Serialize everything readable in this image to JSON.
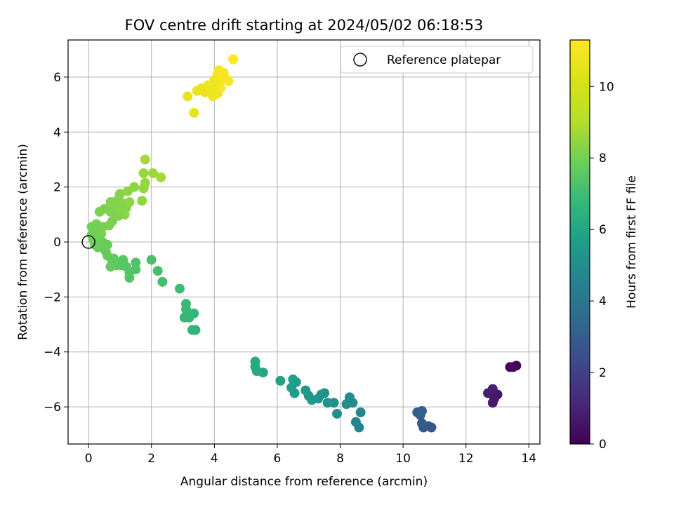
{
  "chart_data": {
    "type": "scatter",
    "title": "FOV centre drift starting at 2024/05/02 06:18:53",
    "xlabel": "Angular distance from reference (arcmin)",
    "ylabel": "Rotation from reference (arcmin)",
    "colorbar_label": "Hours from first FF file",
    "xlim": [
      -0.65,
      14.35
    ],
    "ylim": [
      -7.35,
      7.35
    ],
    "xticks": [
      0,
      2,
      4,
      6,
      8,
      10,
      12,
      14
    ],
    "yticks": [
      -6,
      -4,
      -2,
      0,
      2,
      4,
      6
    ],
    "colorbar_range": [
      0,
      11.3
    ],
    "colorbar_ticks": [
      0,
      2,
      4,
      6,
      8,
      10
    ],
    "colormap": "viridis",
    "grid": true,
    "legend": {
      "position": "upper-right",
      "entries": [
        "Reference platepar"
      ]
    },
    "reference_point": {
      "x": 0,
      "y": 0
    },
    "series": [
      {
        "values": [
          {
            "x": 13.6,
            "y": -4.5,
            "t": 0.1
          },
          {
            "x": 13.5,
            "y": -4.55,
            "t": 0.15
          },
          {
            "x": 13.4,
            "y": -4.55,
            "t": 0.2
          },
          {
            "x": 13.0,
            "y": -5.55,
            "t": 0.6
          },
          {
            "x": 12.9,
            "y": -5.7,
            "t": 0.7
          },
          {
            "x": 12.85,
            "y": -5.85,
            "t": 0.75
          },
          {
            "x": 12.7,
            "y": -5.5,
            "t": 0.85
          },
          {
            "x": 12.85,
            "y": -5.35,
            "t": 0.9
          },
          {
            "x": 10.9,
            "y": -6.75,
            "t": 2.7
          },
          {
            "x": 10.8,
            "y": -6.7,
            "t": 2.75
          },
          {
            "x": 10.65,
            "y": -6.75,
            "t": 2.8
          },
          {
            "x": 10.6,
            "y": -6.6,
            "t": 2.85
          },
          {
            "x": 10.55,
            "y": -6.3,
            "t": 2.9
          },
          {
            "x": 10.45,
            "y": -6.2,
            "t": 3.0
          },
          {
            "x": 10.6,
            "y": -6.15,
            "t": 3.05
          },
          {
            "x": 8.6,
            "y": -6.75,
            "t": 4.6
          },
          {
            "x": 8.5,
            "y": -6.55,
            "t": 4.7
          },
          {
            "x": 8.65,
            "y": -6.2,
            "t": 4.75
          },
          {
            "x": 8.4,
            "y": -5.85,
            "t": 4.85
          },
          {
            "x": 8.3,
            "y": -5.65,
            "t": 4.9
          },
          {
            "x": 8.2,
            "y": -5.9,
            "t": 5.0
          },
          {
            "x": 7.9,
            "y": -6.25,
            "t": 5.05
          },
          {
            "x": 7.8,
            "y": -5.85,
            "t": 5.1
          },
          {
            "x": 7.6,
            "y": -5.85,
            "t": 5.15
          },
          {
            "x": 7.5,
            "y": -5.5,
            "t": 5.2
          },
          {
            "x": 7.4,
            "y": -5.55,
            "t": 5.25
          },
          {
            "x": 7.3,
            "y": -5.7,
            "t": 5.3
          },
          {
            "x": 7.1,
            "y": -5.75,
            "t": 5.35
          },
          {
            "x": 7.0,
            "y": -5.6,
            "t": 5.4
          },
          {
            "x": 6.9,
            "y": -5.4,
            "t": 5.45
          },
          {
            "x": 6.6,
            "y": -5.1,
            "t": 5.55
          },
          {
            "x": 6.55,
            "y": -5.5,
            "t": 5.6
          },
          {
            "x": 6.45,
            "y": -5.3,
            "t": 5.65
          },
          {
            "x": 6.5,
            "y": -5.0,
            "t": 5.7
          },
          {
            "x": 6.1,
            "y": -5.05,
            "t": 5.8
          },
          {
            "x": 5.55,
            "y": -4.75,
            "t": 6.0
          },
          {
            "x": 5.35,
            "y": -4.7,
            "t": 6.05
          },
          {
            "x": 5.3,
            "y": -4.55,
            "t": 6.1
          },
          {
            "x": 5.3,
            "y": -4.35,
            "t": 6.15
          },
          {
            "x": 3.4,
            "y": -3.2,
            "t": 6.6
          },
          {
            "x": 3.3,
            "y": -3.2,
            "t": 6.65
          },
          {
            "x": 3.35,
            "y": -2.6,
            "t": 6.7
          },
          {
            "x": 3.2,
            "y": -2.75,
            "t": 6.75
          },
          {
            "x": 3.05,
            "y": -2.75,
            "t": 6.8
          },
          {
            "x": 3.1,
            "y": -2.45,
            "t": 6.85
          },
          {
            "x": 3.1,
            "y": -2.25,
            "t": 6.9
          },
          {
            "x": 2.9,
            "y": -1.7,
            "t": 7.0
          },
          {
            "x": 2.35,
            "y": -1.45,
            "t": 7.1
          },
          {
            "x": 2.2,
            "y": -1.05,
            "t": 7.15
          },
          {
            "x": 2.0,
            "y": -0.65,
            "t": 7.2
          },
          {
            "x": 1.5,
            "y": -0.75,
            "t": 7.3
          },
          {
            "x": 1.5,
            "y": -1.0,
            "t": 7.35
          },
          {
            "x": 1.3,
            "y": -1.1,
            "t": 7.4
          },
          {
            "x": 1.3,
            "y": -1.3,
            "t": 7.42
          },
          {
            "x": 1.2,
            "y": -0.9,
            "t": 7.45
          },
          {
            "x": 1.1,
            "y": -0.65,
            "t": 7.5
          },
          {
            "x": 1.0,
            "y": -0.8,
            "t": 7.55
          },
          {
            "x": 0.9,
            "y": -0.85,
            "t": 7.6
          },
          {
            "x": 0.75,
            "y": -0.7,
            "t": 7.65
          },
          {
            "x": 0.7,
            "y": -0.9,
            "t": 7.7
          },
          {
            "x": 0.6,
            "y": -0.5,
            "t": 7.75
          },
          {
            "x": 0.55,
            "y": -0.35,
            "t": 7.78
          },
          {
            "x": 0.5,
            "y": -0.15,
            "t": 7.8
          },
          {
            "x": 0.35,
            "y": -0.1,
            "t": 7.82
          },
          {
            "x": 0.3,
            "y": 0.05,
            "t": 7.85
          },
          {
            "x": 0.2,
            "y": -0.1,
            "t": 7.88
          },
          {
            "x": 0.15,
            "y": 0.1,
            "t": 7.9
          },
          {
            "x": 0.1,
            "y": 0.25,
            "t": 7.92
          },
          {
            "x": 0.2,
            "y": 0.45,
            "t": 7.95
          },
          {
            "x": 0.1,
            "y": 0.55,
            "t": 7.98
          },
          {
            "x": 0.25,
            "y": 0.65,
            "t": 8.0
          },
          {
            "x": 0.4,
            "y": 0.3,
            "t": 8.02
          },
          {
            "x": 0.45,
            "y": 0.55,
            "t": 8.05
          },
          {
            "x": 0.65,
            "y": 0.6,
            "t": 8.08
          },
          {
            "x": 0.75,
            "y": 0.75,
            "t": 8.1
          },
          {
            "x": 0.35,
            "y": 1.1,
            "t": 8.12
          },
          {
            "x": 0.5,
            "y": 1.2,
            "t": 8.15
          },
          {
            "x": 0.7,
            "y": 1.1,
            "t": 8.18
          },
          {
            "x": 0.85,
            "y": 1.05,
            "t": 8.2
          },
          {
            "x": 0.9,
            "y": 1.3,
            "t": 8.22
          },
          {
            "x": 0.95,
            "y": 1.55,
            "t": 8.25
          },
          {
            "x": 1.0,
            "y": 1.75,
            "t": 8.28
          },
          {
            "x": 1.1,
            "y": 1.4,
            "t": 8.3
          },
          {
            "x": 1.2,
            "y": 1.25,
            "t": 8.32
          },
          {
            "x": 1.15,
            "y": 1.0,
            "t": 8.35
          },
          {
            "x": 1.3,
            "y": 1.45,
            "t": 8.38
          },
          {
            "x": 1.25,
            "y": 1.85,
            "t": 8.4
          },
          {
            "x": 1.45,
            "y": 2.0,
            "t": 8.42
          },
          {
            "x": 1.7,
            "y": 1.5,
            "t": 8.45
          },
          {
            "x": 1.75,
            "y": 1.95,
            "t": 8.5
          },
          {
            "x": 1.8,
            "y": 2.15,
            "t": 8.55
          },
          {
            "x": 1.75,
            "y": 2.5,
            "t": 8.6
          },
          {
            "x": 2.05,
            "y": 2.5,
            "t": 8.65
          },
          {
            "x": 2.3,
            "y": 2.35,
            "t": 8.7
          },
          {
            "x": 1.8,
            "y": 3.0,
            "t": 8.75
          },
          {
            "x": 0.9,
            "y": 1.5,
            "t": 8.3
          },
          {
            "x": 0.7,
            "y": 1.45,
            "t": 8.25
          },
          {
            "x": 0.95,
            "y": 0.95,
            "t": 8.2
          },
          {
            "x": 1.05,
            "y": 1.2,
            "t": 8.28
          },
          {
            "x": 0.8,
            "y": 1.35,
            "t": 8.22
          },
          {
            "x": 0.3,
            "y": -0.2,
            "t": 7.86
          },
          {
            "x": 0.45,
            "y": 0.0,
            "t": 7.84
          },
          {
            "x": 0.6,
            "y": -0.1,
            "t": 7.8
          },
          {
            "x": 0.8,
            "y": -0.6,
            "t": 7.68
          },
          {
            "x": 1.05,
            "y": -0.85,
            "t": 7.52
          },
          {
            "x": 3.15,
            "y": 5.3,
            "t": 10.6
          },
          {
            "x": 3.35,
            "y": 4.7,
            "t": 10.62
          },
          {
            "x": 3.45,
            "y": 5.5,
            "t": 10.65
          },
          {
            "x": 3.6,
            "y": 5.6,
            "t": 10.7
          },
          {
            "x": 3.7,
            "y": 5.45,
            "t": 10.72
          },
          {
            "x": 3.8,
            "y": 5.7,
            "t": 10.75
          },
          {
            "x": 3.95,
            "y": 5.3,
            "t": 10.78
          },
          {
            "x": 4.0,
            "y": 5.5,
            "t": 10.8
          },
          {
            "x": 4.1,
            "y": 5.4,
            "t": 10.82
          },
          {
            "x": 4.15,
            "y": 5.75,
            "t": 10.85
          },
          {
            "x": 4.0,
            "y": 5.9,
            "t": 10.88
          },
          {
            "x": 4.1,
            "y": 6.1,
            "t": 10.9
          },
          {
            "x": 4.15,
            "y": 6.25,
            "t": 10.95
          },
          {
            "x": 4.3,
            "y": 6.15,
            "t": 11.0
          },
          {
            "x": 4.35,
            "y": 5.95,
            "t": 11.05
          },
          {
            "x": 4.45,
            "y": 5.85,
            "t": 11.1
          },
          {
            "x": 4.2,
            "y": 5.6,
            "t": 11.12
          },
          {
            "x": 4.25,
            "y": 6.0,
            "t": 11.15
          },
          {
            "x": 4.6,
            "y": 6.65,
            "t": 11.25
          },
          {
            "x": 3.9,
            "y": 5.6,
            "t": 10.79
          }
        ]
      }
    ]
  }
}
